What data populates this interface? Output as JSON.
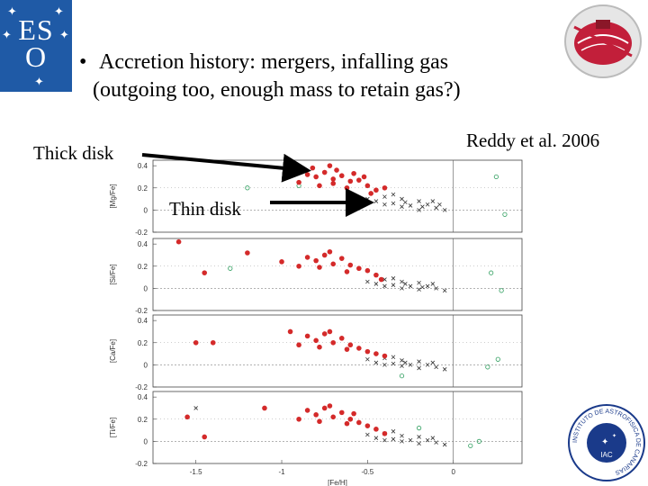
{
  "logos": {
    "eso": {
      "letters_top": "ES",
      "letters_bottom": "O",
      "color": "#1f5aa6"
    },
    "iac": {
      "ring_text": "INSTITUTO DE ASTROFISICA DE CANARIAS",
      "inner_text": "IAC"
    }
  },
  "bullet": {
    "marker": "•",
    "line1": "Accretion history: mergers, infalling gas",
    "line2": "(outgoing too, enough mass to retain gas?)"
  },
  "annotations": {
    "thick_disk": "Thick disk",
    "thin_disk": "Thin disk",
    "citation": "Reddy et al. 2006"
  },
  "chart_data": {
    "type": "scatter",
    "xlabel": "[Fe/H]",
    "xlim": [
      -1.75,
      0.4
    ],
    "x_ticks": [
      -1.5,
      -1,
      -0.5,
      0
    ],
    "x_tick_labels": [
      "-1.5",
      "-1",
      "-0.5",
      "0"
    ],
    "ylim": [
      -0.2,
      0.45
    ],
    "y_ticks": [
      -0.2,
      0,
      0.2,
      0.4
    ],
    "y_tick_labels": [
      "-0.2",
      "0",
      "0.2",
      "0.4"
    ],
    "colors": {
      "thick": "#d42a2a",
      "thin": "#333333",
      "other": "#2e9e5e"
    },
    "panels": [
      {
        "ylabel": "[Mg/Fe]",
        "thick_points": [
          [
            -0.85,
            0.32
          ],
          [
            -0.8,
            0.3
          ],
          [
            -0.75,
            0.34
          ],
          [
            -0.7,
            0.28
          ],
          [
            -0.65,
            0.31
          ],
          [
            -0.6,
            0.26
          ],
          [
            -0.78,
            0.22
          ],
          [
            -0.72,
            0.4
          ],
          [
            -0.55,
            0.27
          ],
          [
            -0.5,
            0.22
          ],
          [
            -0.45,
            0.18
          ],
          [
            -0.9,
            0.25
          ],
          [
            -0.68,
            0.36
          ],
          [
            -0.62,
            0.2
          ],
          [
            -0.58,
            0.33
          ],
          [
            -0.48,
            0.15
          ],
          [
            -0.82,
            0.38
          ],
          [
            -0.7,
            0.24
          ],
          [
            -0.52,
            0.3
          ],
          [
            -0.4,
            0.2
          ]
        ],
        "thin_points": [
          [
            -0.5,
            0.1
          ],
          [
            -0.45,
            0.08
          ],
          [
            -0.4,
            0.12
          ],
          [
            -0.35,
            0.06
          ],
          [
            -0.3,
            0.1
          ],
          [
            -0.25,
            0.04
          ],
          [
            -0.2,
            0.08
          ],
          [
            -0.15,
            0.05
          ],
          [
            -0.1,
            0.02
          ],
          [
            -0.05,
            0.0
          ],
          [
            -0.3,
            0.03
          ],
          [
            -0.4,
            0.05
          ],
          [
            -0.2,
            0.0
          ],
          [
            -0.12,
            0.08
          ],
          [
            -0.35,
            0.14
          ],
          [
            -0.28,
            0.07
          ],
          [
            -0.18,
            0.03
          ],
          [
            -0.08,
            0.05
          ]
        ],
        "other_points": [
          [
            0.25,
            0.3
          ],
          [
            0.3,
            -0.04
          ],
          [
            -0.9,
            0.22
          ],
          [
            -1.2,
            0.2
          ]
        ]
      },
      {
        "ylabel": "[Si/Fe]",
        "thick_points": [
          [
            -0.85,
            0.28
          ],
          [
            -0.8,
            0.25
          ],
          [
            -0.75,
            0.3
          ],
          [
            -0.7,
            0.22
          ],
          [
            -0.65,
            0.27
          ],
          [
            -0.6,
            0.21
          ],
          [
            -0.55,
            0.18
          ],
          [
            -0.5,
            0.16
          ],
          [
            -0.9,
            0.2
          ],
          [
            -0.72,
            0.33
          ],
          [
            -0.62,
            0.15
          ],
          [
            -0.45,
            0.12
          ],
          [
            -0.78,
            0.19
          ],
          [
            -1.2,
            0.32
          ],
          [
            -1.6,
            0.42
          ],
          [
            -1.45,
            0.14
          ],
          [
            -1.0,
            0.24
          ],
          [
            -0.42,
            0.08
          ]
        ],
        "thin_points": [
          [
            -0.5,
            0.06
          ],
          [
            -0.45,
            0.04
          ],
          [
            -0.4,
            0.08
          ],
          [
            -0.35,
            0.03
          ],
          [
            -0.3,
            0.06
          ],
          [
            -0.25,
            0.02
          ],
          [
            -0.2,
            0.05
          ],
          [
            -0.15,
            0.02
          ],
          [
            -0.1,
            0.0
          ],
          [
            -0.05,
            -0.02
          ],
          [
            -0.3,
            0.0
          ],
          [
            -0.4,
            0.02
          ],
          [
            -0.2,
            -0.01
          ],
          [
            -0.12,
            0.04
          ],
          [
            -0.35,
            0.09
          ],
          [
            -0.28,
            0.04
          ],
          [
            -0.18,
            0.01
          ]
        ],
        "other_points": [
          [
            0.22,
            0.14
          ],
          [
            0.28,
            -0.02
          ],
          [
            -1.3,
            0.18
          ]
        ]
      },
      {
        "ylabel": "[Ca/Fe]",
        "thick_points": [
          [
            -0.85,
            0.26
          ],
          [
            -0.8,
            0.22
          ],
          [
            -0.75,
            0.28
          ],
          [
            -0.7,
            0.2
          ],
          [
            -0.65,
            0.24
          ],
          [
            -0.6,
            0.18
          ],
          [
            -0.55,
            0.15
          ],
          [
            -0.5,
            0.12
          ],
          [
            -0.9,
            0.18
          ],
          [
            -0.72,
            0.3
          ],
          [
            -0.62,
            0.14
          ],
          [
            -0.45,
            0.1
          ],
          [
            -1.5,
            0.2
          ],
          [
            -1.4,
            0.2
          ],
          [
            -0.95,
            0.3
          ],
          [
            -0.4,
            0.08
          ],
          [
            -0.78,
            0.16
          ]
        ],
        "thin_points": [
          [
            -0.5,
            0.05
          ],
          [
            -0.45,
            0.02
          ],
          [
            -0.4,
            0.06
          ],
          [
            -0.35,
            0.01
          ],
          [
            -0.3,
            0.04
          ],
          [
            -0.25,
            0.0
          ],
          [
            -0.2,
            0.03
          ],
          [
            -0.15,
            0.0
          ],
          [
            -0.1,
            -0.02
          ],
          [
            -0.05,
            -0.04
          ],
          [
            -0.3,
            -0.01
          ],
          [
            -0.4,
            0.0
          ],
          [
            -0.2,
            -0.03
          ],
          [
            -0.12,
            0.02
          ],
          [
            -0.35,
            0.07
          ],
          [
            -0.28,
            0.02
          ]
        ],
        "other_points": [
          [
            0.2,
            -0.02
          ],
          [
            0.26,
            0.05
          ],
          [
            -0.3,
            -0.1
          ]
        ]
      },
      {
        "ylabel": "[Ti/Fe]",
        "thick_points": [
          [
            -0.85,
            0.28
          ],
          [
            -0.8,
            0.24
          ],
          [
            -0.75,
            0.3
          ],
          [
            -0.7,
            0.22
          ],
          [
            -0.65,
            0.26
          ],
          [
            -0.6,
            0.2
          ],
          [
            -0.55,
            0.17
          ],
          [
            -0.5,
            0.14
          ],
          [
            -0.9,
            0.2
          ],
          [
            -0.72,
            0.32
          ],
          [
            -0.62,
            0.16
          ],
          [
            -0.45,
            0.11
          ],
          [
            -1.55,
            0.22
          ],
          [
            -1.45,
            0.04
          ],
          [
            -1.1,
            0.3
          ],
          [
            -0.4,
            0.07
          ],
          [
            -0.78,
            0.18
          ],
          [
            -0.58,
            0.25
          ]
        ],
        "thin_points": [
          [
            -0.5,
            0.06
          ],
          [
            -0.45,
            0.03
          ],
          [
            -0.4,
            0.07
          ],
          [
            -0.35,
            0.02
          ],
          [
            -0.3,
            0.05
          ],
          [
            -0.25,
            0.01
          ],
          [
            -0.2,
            0.04
          ],
          [
            -0.15,
            0.01
          ],
          [
            -0.1,
            -0.01
          ],
          [
            -0.05,
            -0.03
          ],
          [
            -0.3,
            0.0
          ],
          [
            -0.4,
            0.01
          ],
          [
            -0.2,
            -0.02
          ],
          [
            -0.12,
            0.03
          ],
          [
            -0.35,
            0.09
          ],
          [
            -1.5,
            0.3
          ]
        ],
        "other_points": [
          [
            0.15,
            0.0
          ],
          [
            0.1,
            -0.04
          ],
          [
            -0.2,
            0.12
          ]
        ]
      }
    ]
  }
}
